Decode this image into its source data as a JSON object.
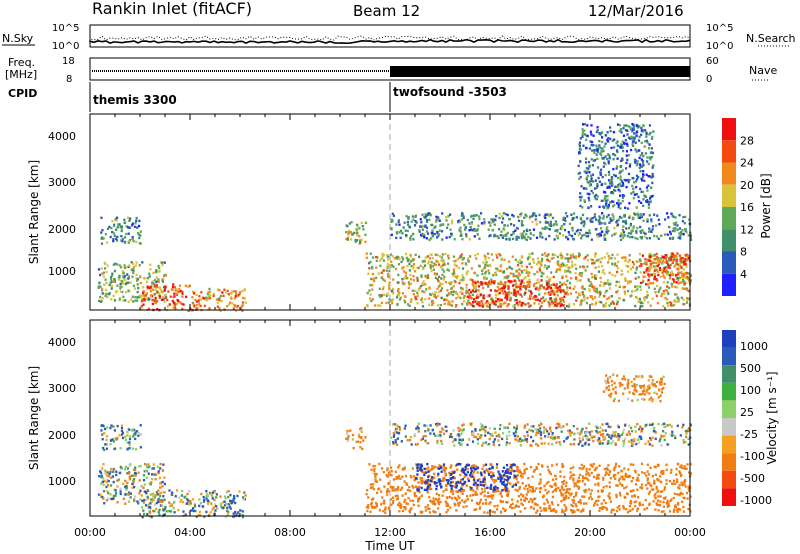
{
  "header": {
    "station": "Rankin Inlet (fitACF)",
    "beam": "Beam 12",
    "date": "12/Mar/2016"
  },
  "noise_panel": {
    "left_label": "N.Sky",
    "right_label": "N.Search",
    "left_ticks": [
      "10^5",
      "10^0"
    ],
    "right_ticks": [
      "10^5",
      "10^0"
    ]
  },
  "freq_panel": {
    "left_label_line1": "Freq.",
    "left_label_line2": "[MHz]",
    "right_label": "Nave",
    "left_ticks": [
      "18",
      "8"
    ],
    "right_ticks": [
      "60",
      "0"
    ]
  },
  "cpid_panel": {
    "label": "CPID",
    "modes": [
      "themis 3300",
      "twofsound -3503"
    ]
  },
  "colors": {
    "power_scale": [
      "#1f1fff",
      "#2a5bb8",
      "#3f8f6a",
      "#5fa85a",
      "#d8c43a",
      "#f08a1c",
      "#f24a10",
      "#ee1010"
    ],
    "velocity_scale": [
      "#ee1010",
      "#f24a10",
      "#f07d12",
      "#f5a020",
      "#c8c8c8",
      "#8cd06a",
      "#3fb03f",
      "#3f8f6a",
      "#2a5bb8",
      "#1f3fbf"
    ]
  },
  "chart_data": [
    {
      "type": "heatmap",
      "name": "power",
      "ylabel": "Slant Range [km]",
      "colorbar_label": "Power [dB]",
      "colorbar_ticks": [
        "28",
        "24",
        "20",
        "16",
        "12",
        "8",
        "4"
      ],
      "colorbar_range": [
        0,
        32
      ],
      "yticks": [
        "4000",
        "3000",
        "2000",
        "1000"
      ],
      "ylim": [
        200,
        4600
      ],
      "xlim_hours": [
        0,
        24
      ],
      "regions": [
        {
          "t0": 0.4,
          "t1": 2.0,
          "r0": 1700,
          "r1": 2300,
          "level": 10
        },
        {
          "t0": 0.3,
          "t1": 3.0,
          "r0": 400,
          "r1": 1300,
          "level": 14
        },
        {
          "t0": 2.0,
          "t1": 4.0,
          "r0": 200,
          "r1": 800,
          "level": 26
        },
        {
          "t0": 4.0,
          "t1": 6.2,
          "r0": 200,
          "r1": 700,
          "level": 22
        },
        {
          "t0": 10.2,
          "t1": 11.0,
          "r0": 1700,
          "r1": 2200,
          "level": 16
        },
        {
          "t0": 11.0,
          "t1": 24.0,
          "r0": 300,
          "r1": 1500,
          "level": 18
        },
        {
          "t0": 15.0,
          "t1": 19.0,
          "r0": 300,
          "r1": 900,
          "level": 28
        },
        {
          "t0": 22.0,
          "t1": 24.0,
          "r0": 800,
          "r1": 1500,
          "level": 26
        },
        {
          "t0": 12.0,
          "t1": 24.0,
          "r0": 1800,
          "r1": 2400,
          "level": 10
        },
        {
          "t0": 19.5,
          "t1": 22.5,
          "r0": 2500,
          "r1": 4400,
          "level": 8
        }
      ]
    },
    {
      "type": "heatmap",
      "name": "velocity",
      "ylabel": "Slant Range [km]",
      "colorbar_label": "Velocity [m s⁻¹]",
      "colorbar_ticks": [
        "1000",
        "500",
        "100",
        "25",
        "-25",
        "-100",
        "-500",
        "-1000"
      ],
      "yticks": [
        "4000",
        "3000",
        "2000",
        "1000"
      ],
      "ylim": [
        200,
        4600
      ],
      "xlim_hours": [
        0,
        24
      ],
      "regions": [
        {
          "t0": 0.4,
          "t1": 2.0,
          "r0": 1700,
          "r1": 2300,
          "velocity": 120
        },
        {
          "t0": 0.3,
          "t1": 3.0,
          "r0": 500,
          "r1": 1400,
          "velocity": 0
        },
        {
          "t0": 2.0,
          "t1": 6.2,
          "r0": 200,
          "r1": 800,
          "velocity": 60
        },
        {
          "t0": 10.2,
          "t1": 11.0,
          "r0": 1700,
          "r1": 2200,
          "velocity": -200
        },
        {
          "t0": 11.0,
          "t1": 24.0,
          "r0": 300,
          "r1": 1400,
          "velocity": -300
        },
        {
          "t0": 13.0,
          "t1": 17.0,
          "r0": 800,
          "r1": 1400,
          "velocity": 800
        },
        {
          "t0": 12.0,
          "t1": 24.0,
          "r0": 1800,
          "r1": 2300,
          "velocity": 0
        },
        {
          "t0": 20.5,
          "t1": 23.0,
          "r0": 2800,
          "r1": 3400,
          "velocity": -200
        }
      ]
    }
  ],
  "x_axis": {
    "ticks": [
      "00:00",
      "04:00",
      "08:00",
      "12:00",
      "16:00",
      "20:00",
      "00:00"
    ],
    "label": "Time UT"
  }
}
